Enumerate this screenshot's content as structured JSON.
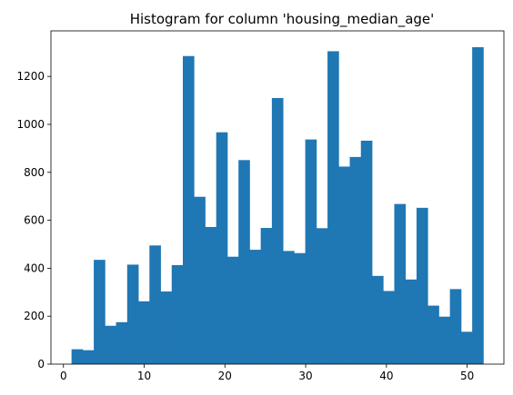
{
  "chart_data": {
    "type": "bar",
    "title": "Histogram for column 'housing_median_age'",
    "xlabel": "",
    "ylabel": "",
    "xlim": [
      -1.55,
      54.55
    ],
    "ylim": [
      0,
      1390
    ],
    "x_ticks": [
      0,
      10,
      20,
      30,
      40,
      50
    ],
    "y_ticks": [
      0,
      200,
      400,
      600,
      800,
      1000,
      1200
    ],
    "bins": {
      "start": 1,
      "end": 52,
      "count": 37,
      "counts": [
        62,
        58,
        435,
        160,
        175,
        415,
        262,
        495,
        303,
        413,
        1285,
        698,
        572,
        967,
        448,
        851,
        477,
        568,
        1110,
        472,
        463,
        937,
        567,
        1305,
        824,
        864,
        932,
        368,
        305,
        668,
        353,
        652,
        244,
        198,
        313,
        135,
        1322
      ]
    },
    "bar_color": "#1f77b4",
    "grid": false
  }
}
